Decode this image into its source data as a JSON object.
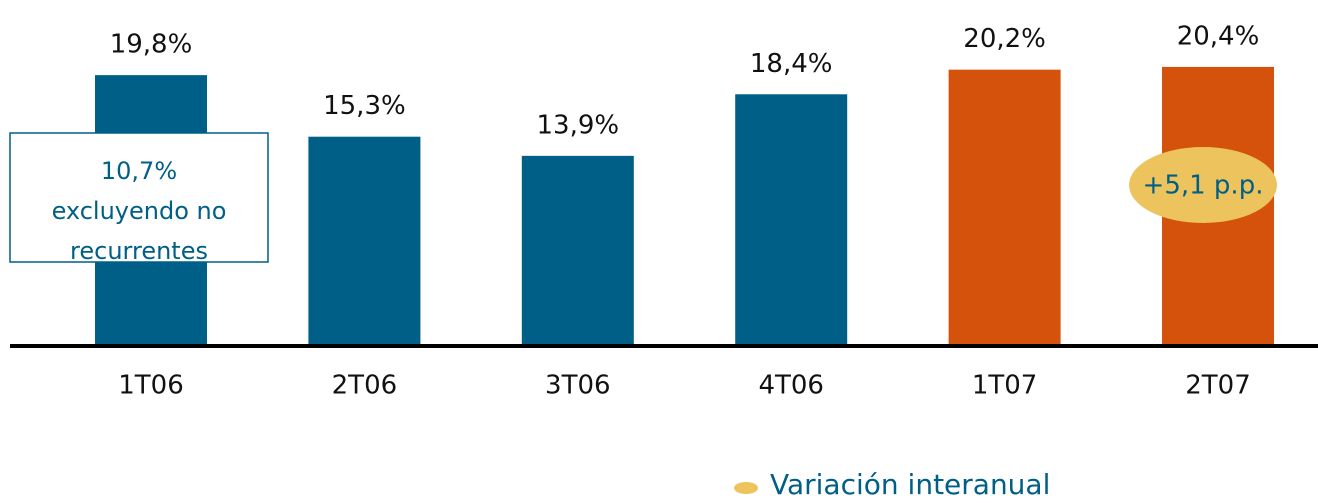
{
  "chart_data": {
    "type": "bar",
    "categories": [
      "1T06",
      "2T06",
      "3T06",
      "4T06",
      "1T07",
      "2T07"
    ],
    "values": [
      19.8,
      15.3,
      13.9,
      18.4,
      20.2,
      20.4
    ],
    "value_labels": [
      "19,8%",
      "15,3%",
      "13,9%",
      "18,4%",
      "20,2%",
      "20,4%"
    ],
    "colors": [
      "#005f87",
      "#005f87",
      "#005f87",
      "#005f87",
      "#d4520c",
      "#d4520c"
    ],
    "ylim": [
      0,
      25
    ],
    "annotations": [
      {
        "text": [
          "10,7%",
          "excluyendo no",
          "recurrentes"
        ]
      },
      {
        "text": "+5,1 p.p."
      }
    ],
    "legend": {
      "label": "Variación interanual",
      "color": "#ecc35c"
    }
  }
}
